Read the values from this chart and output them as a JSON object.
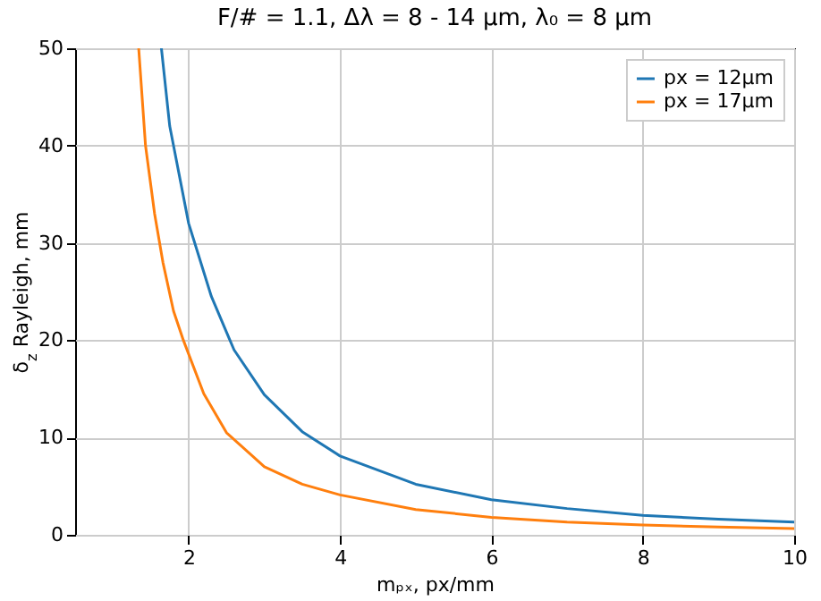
{
  "chart_data": {
    "type": "line",
    "title": "F/# = 1.1, Δλ = 8 - 14 μm, λ₀ = 8 μm",
    "xlabel": "mₚₓ, px/mm",
    "ylabel": "δ$_{z}$ Rayleigh, mm",
    "xlim": [
      0.5,
      10
    ],
    "xticks": [
      2,
      4,
      6,
      8,
      10
    ],
    "ylim": [
      0,
      50
    ],
    "yticks": [
      0,
      10,
      20,
      30,
      40,
      50
    ],
    "grid": true,
    "legend": "top right",
    "line_style": "solid",
    "series": [
      {
        "name": "px = 12μm",
        "color": "#1f77b4",
        "x": [
          1.64,
          1.75,
          2.0,
          2.3,
          2.6,
          3.0,
          3.5,
          4.0,
          5.0,
          6.0,
          7.0,
          8.0,
          9.0,
          10.0
        ],
        "values": [
          50,
          42,
          32,
          24.5,
          19,
          14.4,
          10.6,
          8.1,
          5.2,
          3.6,
          2.7,
          2.0,
          1.6,
          1.3
        ]
      },
      {
        "name": "px = 17μm",
        "color": "#ff7f0e",
        "x": [
          1.34,
          1.43,
          1.55,
          1.66,
          1.8,
          1.93,
          2.2,
          2.5,
          3.0,
          3.5,
          4.0,
          5.0,
          6.0,
          7.0,
          8.0,
          9.0,
          10.0
        ],
        "values": [
          50,
          40,
          33,
          28,
          23,
          20,
          14.5,
          10.5,
          7,
          5.2,
          4.1,
          2.6,
          1.8,
          1.3,
          1.0,
          0.8,
          0.65
        ]
      }
    ]
  }
}
